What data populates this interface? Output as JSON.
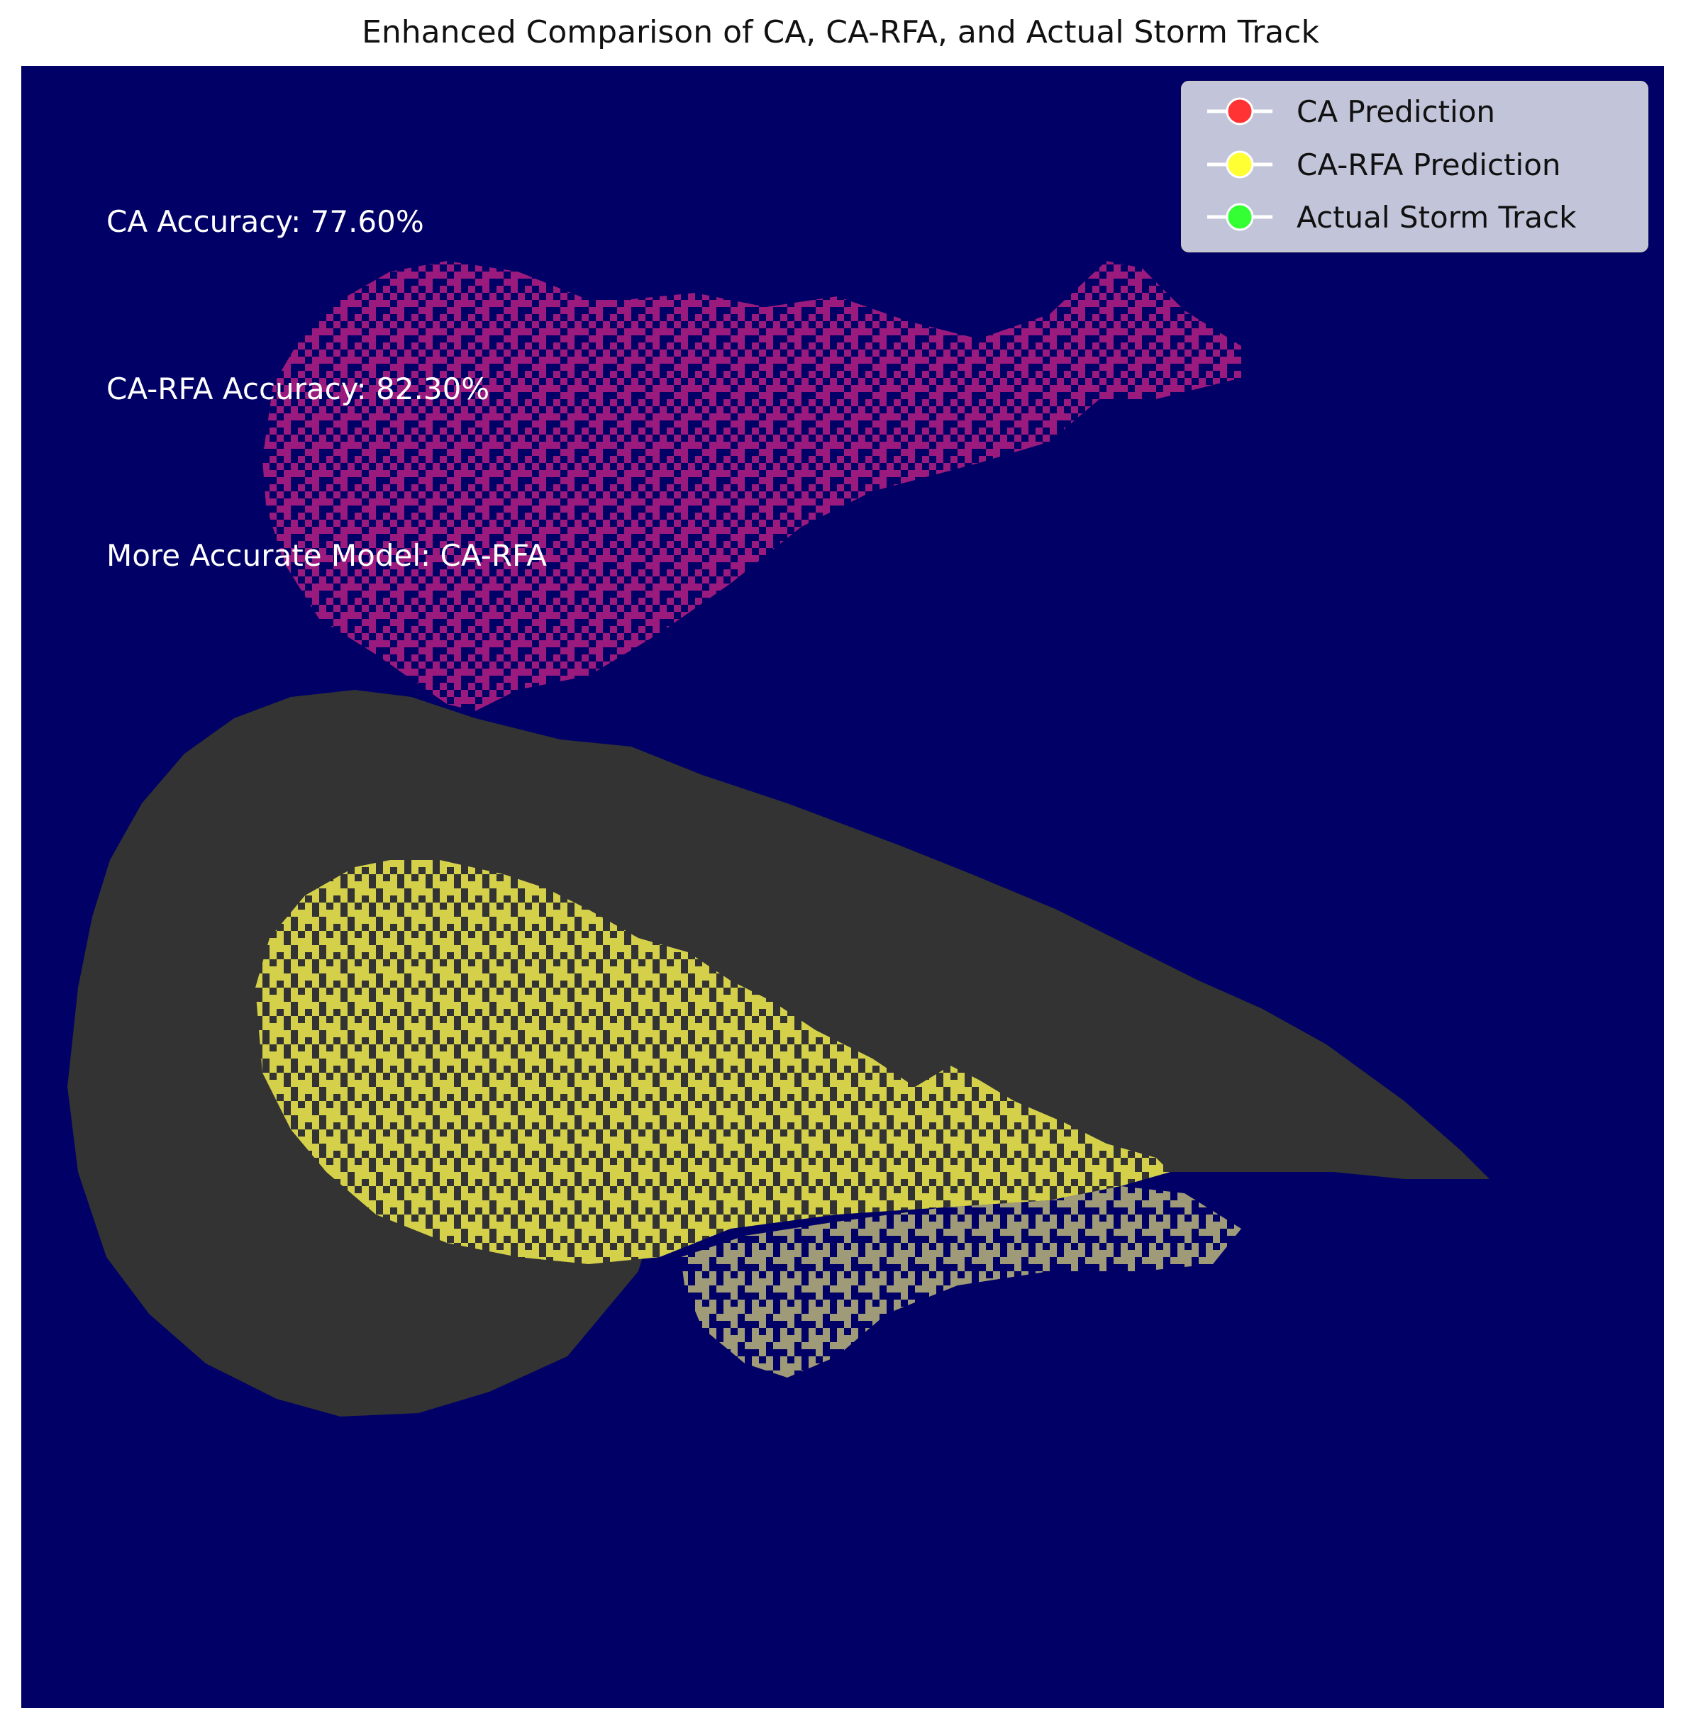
{
  "chart_data": {
    "type": "heatmap",
    "title": "Enhanced Comparison of CA, CA-RFA, and Actual Storm Track",
    "grid": false,
    "axes_visible": false,
    "colors": {
      "background": "#000066",
      "ca_prediction_area": "#9a1a7e",
      "ca_rfa_prediction_area": "#d4d04a",
      "actual_storm_track_area": "#333333",
      "overlap_area": "#9f9a78"
    },
    "annotations": [
      "CA Accuracy: 77.60%",
      "CA-RFA Accuracy: 82.30%",
      "More Accurate Model: CA-RFA"
    ],
    "accuracy": {
      "CA": 77.6,
      "CA-RFA": 82.3
    },
    "more_accurate_model": "CA-RFA",
    "legend": {
      "placement": "top-right",
      "entries": [
        {
          "label": "CA Prediction",
          "color": "#ff3333"
        },
        {
          "label": "CA-RFA Prediction",
          "color": "#ffff33"
        },
        {
          "label": "Actual Storm Track",
          "color": "#33ff33"
        }
      ]
    }
  }
}
